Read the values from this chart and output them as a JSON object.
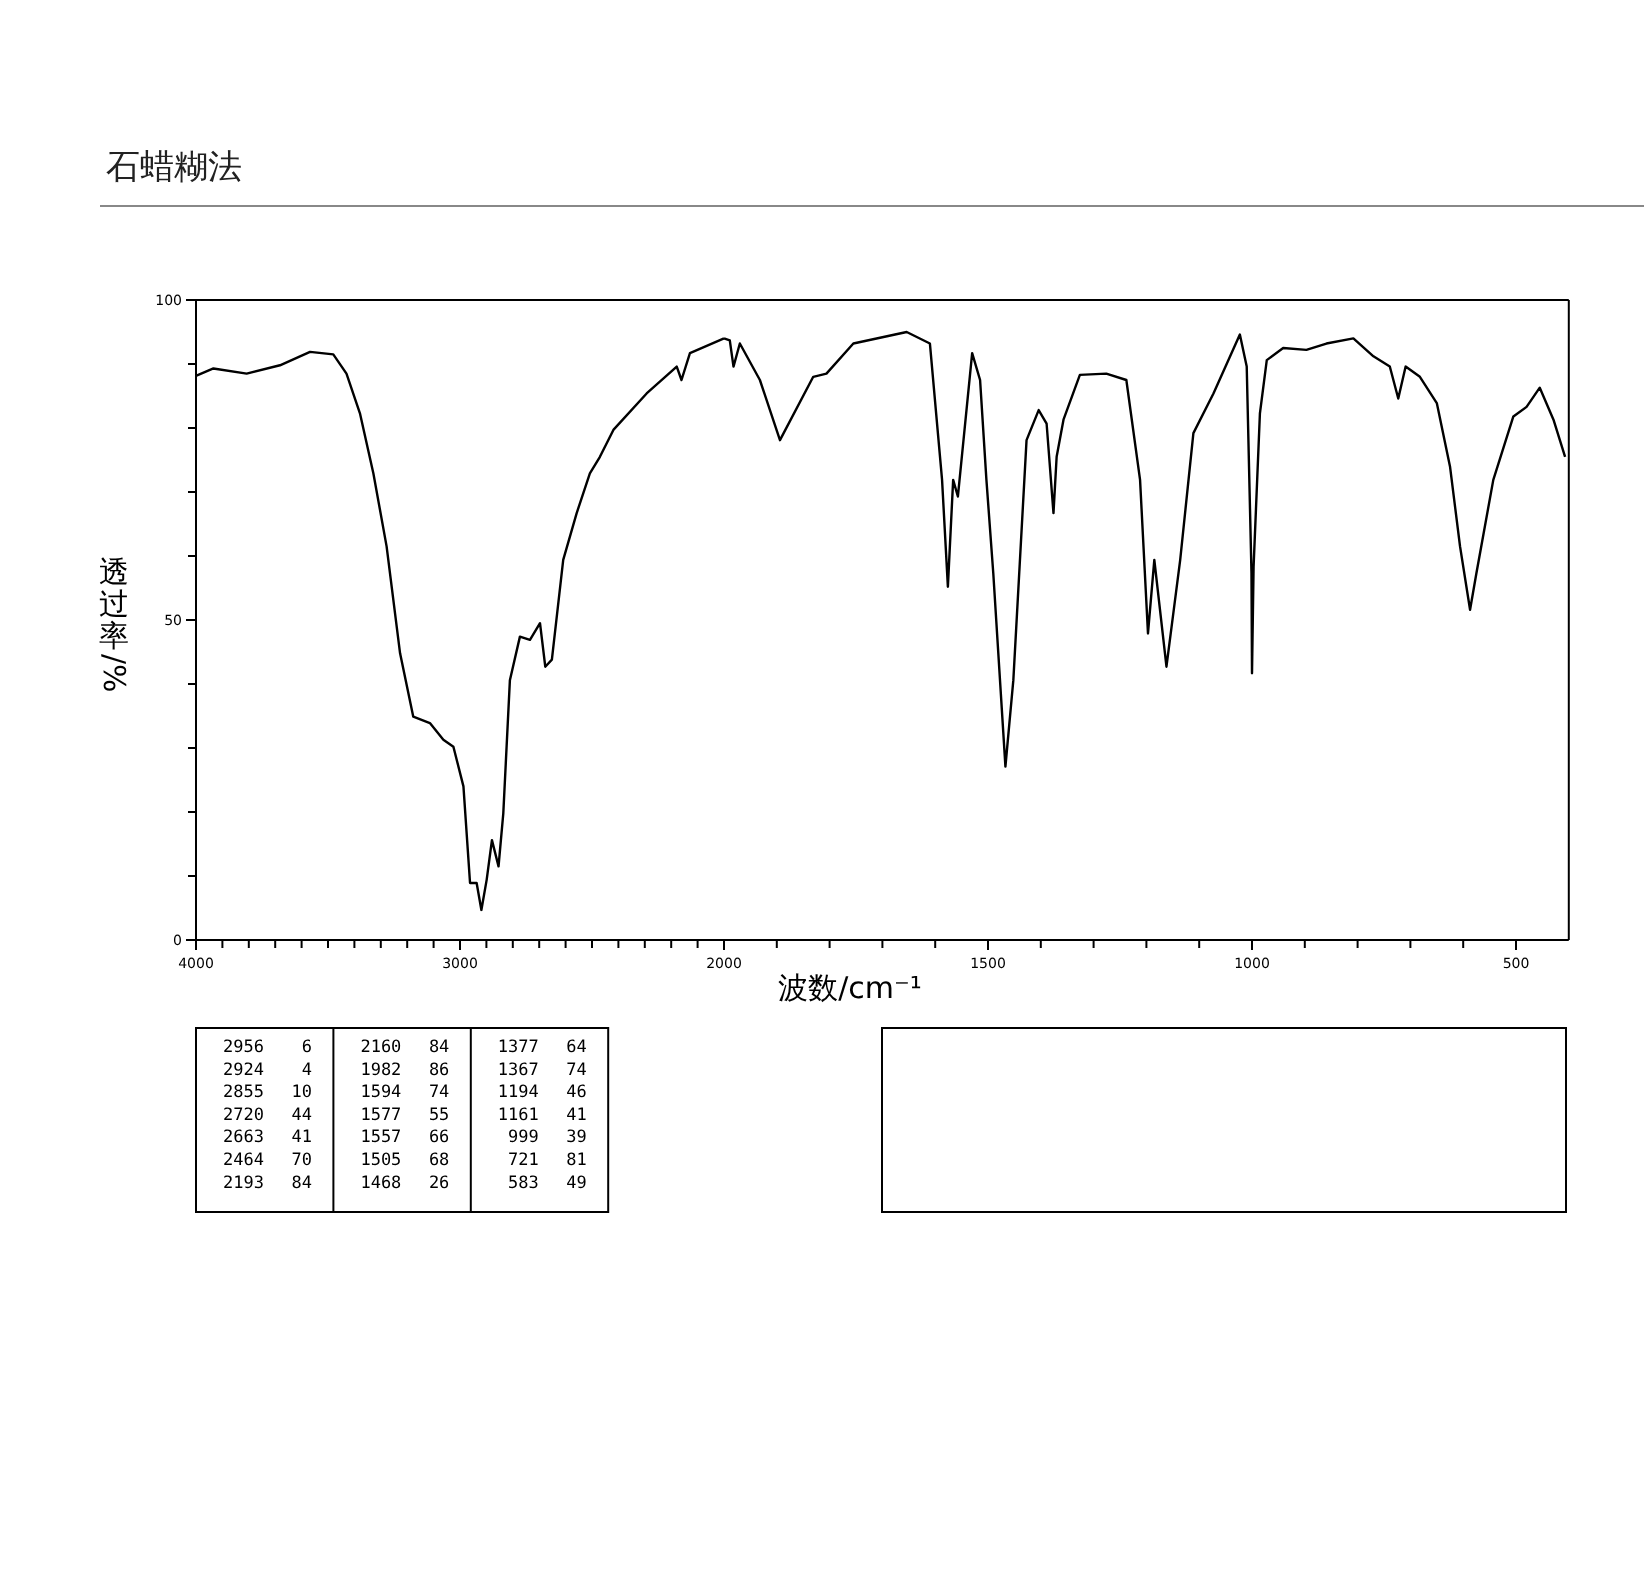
{
  "chart_data": [
    {
      "type": "line",
      "title": "石蜡糊法",
      "ylabel": "透过率/%",
      "xlim": [
        4000,
        2000
      ],
      "ylim": [
        0,
        100
      ],
      "xticks": [
        4000,
        {
          "value": 3900,
          "label": null
        },
        {
          "value": 3800,
          "label": null
        },
        {
          "value": 3700,
          "label": null
        },
        {
          "value": 3600,
          "label": null
        },
        {
          "value": 3500,
          "label": null
        },
        {
          "value": 3400,
          "label": null
        },
        {
          "value": 3300,
          "label": null
        },
        {
          "value": 3200,
          "label": null
        },
        {
          "value": 3100,
          "label": null
        },
        3000,
        {
          "value": 2900,
          "label": null
        },
        {
          "value": 2800,
          "label": null
        },
        {
          "value": 2700,
          "label": null
        },
        {
          "value": 2600,
          "label": null
        },
        {
          "value": 2500,
          "label": null
        },
        {
          "value": 2400,
          "label": null
        },
        {
          "value": 2300,
          "label": null
        },
        {
          "value": 2200,
          "label": null
        },
        {
          "value": 2100,
          "label": null
        }
      ],
      "yticks": [
        0,
        {
          "value": 10,
          "label": null
        },
        {
          "value": 20,
          "label": null
        },
        {
          "value": 30,
          "label": null
        },
        {
          "value": 40,
          "label": null
        },
        50,
        {
          "value": 60,
          "label": null
        },
        {
          "value": 70,
          "label": null
        },
        {
          "value": 80,
          "label": null
        },
        {
          "value": 90,
          "label": null
        },
        100
      ],
      "series": [
        {
          "color": "#000000",
          "x": [
            3998,
            3934,
            3808,
            3682,
            3568,
            3480,
            3430,
            3379,
            3328,
            3278,
            3227,
            3177,
            3114,
            3063,
            3025,
            2987,
            2962,
            2937,
            2919,
            2899,
            2879,
            2854,
            2836,
            2811,
            2773,
            2735,
            2697,
            2677,
            2652,
            2609,
            2558,
            2508,
            2470,
            2419,
            2293,
            2179,
            2161,
            2129,
            2000
          ],
          "values": [
            88.2,
            89.3,
            88.5,
            89.8,
            91.9,
            91.5,
            88.5,
            82.3,
            72.9,
            61.5,
            44.8,
            34.9,
            33.9,
            31.3,
            30.2,
            24.0,
            8.9,
            8.9,
            4.7,
            9.4,
            15.6,
            11.5,
            19.8,
            40.6,
            47.4,
            46.9,
            49.5,
            42.7,
            43.8,
            59.4,
            66.7,
            72.9,
            75.5,
            79.7,
            85.4,
            89.6,
            87.5,
            91.7,
            94.0
          ]
        }
      ],
      "annotations": [
        "2956 6",
        "2924 4",
        "2855 10",
        "2720 44",
        "2663 41",
        "2464 70",
        "2193 84",
        "2160 84",
        "1982 86",
        "1594 74",
        "1577 55",
        "1557 66",
        "1505 68",
        "1468 26",
        "1377 64",
        "1367 74",
        "1194 46",
        "1161 41",
        "999 39",
        "721 81",
        "583 49"
      ]
    },
    {
      "type": "line",
      "xlabel": "波数/cm⁻¹",
      "tick_labels": "x",
      "xlim": [
        2000,
        400
      ],
      "ylim": [
        0,
        100
      ],
      "xticks": [
        2000,
        {
          "value": 1900,
          "label": null
        },
        {
          "value": 1800,
          "label": null
        },
        {
          "value": 1700,
          "label": null
        },
        {
          "value": 1600,
          "label": null
        },
        1500,
        {
          "value": 1400,
          "label": null
        },
        {
          "value": 1300,
          "label": null
        },
        {
          "value": 1200,
          "label": null
        },
        {
          "value": 1100,
          "label": null
        },
        1000,
        {
          "value": 900,
          "label": null
        },
        {
          "value": 800,
          "label": null
        },
        {
          "value": 700,
          "label": null
        },
        {
          "value": 600,
          "label": null
        },
        500
      ],
      "series": [
        {
          "color": "#000000",
          "x": [
            2000,
            1989,
            1982,
            1970,
            1932,
            1894,
            1831,
            1806,
            1755,
            1654,
            1610,
            1587,
            1576,
            1566,
            1557,
            1530,
            1515,
            1503,
            1490,
            1467,
            1452,
            1427,
            1404,
            1389,
            1376,
            1370,
            1357,
            1326,
            1276,
            1238,
            1212,
            1197,
            1185,
            1162,
            1136,
            1111,
            1073,
            1023,
            1010,
            1001,
            1000,
            997,
            985,
            972,
            941,
            897,
            859,
            808,
            770,
            739,
            723,
            709,
            682,
            650,
            625,
            606,
            587,
            575,
            543,
            505,
            480,
            455,
            429,
            407
          ],
          "values": [
            94.0,
            93.7,
            89.6,
            93.2,
            87.5,
            78.1,
            88.0,
            88.5,
            93.2,
            95.0,
            93.2,
            71.9,
            55.2,
            71.9,
            69.3,
            91.7,
            87.5,
            71.9,
            57.3,
            27.1,
            40.6,
            78.1,
            82.8,
            80.7,
            66.7,
            75.5,
            81.3,
            88.3,
            88.5,
            87.5,
            71.9,
            47.9,
            59.4,
            42.7,
            59.4,
            79.2,
            85.4,
            94.6,
            89.6,
            57.3,
            41.7,
            58.3,
            82.3,
            90.6,
            92.5,
            92.2,
            93.2,
            94.0,
            91.2,
            89.6,
            84.6,
            89.6,
            88.0,
            83.9,
            74.0,
            61.5,
            51.6,
            57.3,
            71.9,
            81.8,
            83.3,
            86.3,
            81.3,
            75.5
          ]
        }
      ]
    }
  ]
}
